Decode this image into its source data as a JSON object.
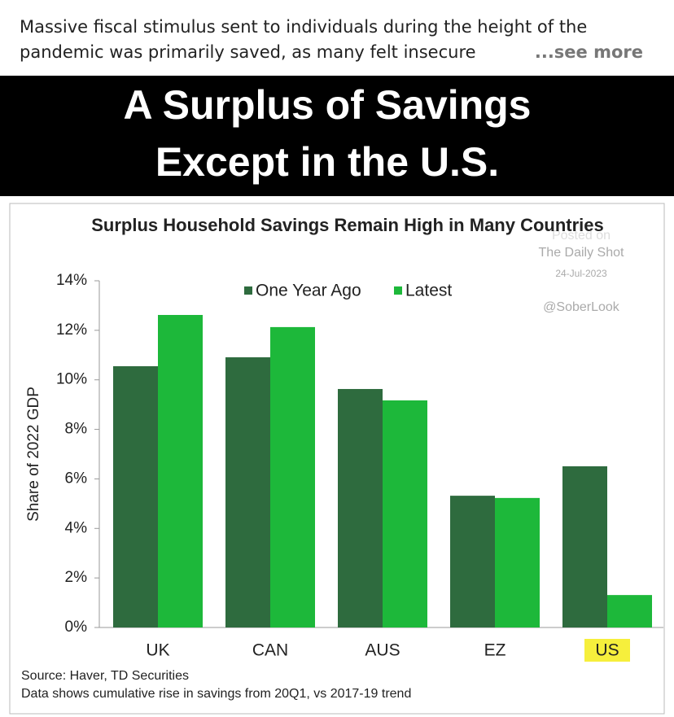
{
  "post": {
    "text": "Massive fiscal stimulus sent to individuals during the height of the pandemic was primarily saved, as many felt insecure",
    "see_more": "...see more"
  },
  "banner": {
    "line1": "A Surplus of Savings",
    "line2": "Except in the U.S."
  },
  "chart_data": {
    "type": "bar",
    "title": "Surplus Household Savings Remain High in Many Countries",
    "y_label": "Share of 2022 GDP",
    "categories": [
      "UK",
      "CAN",
      "AUS",
      "EZ",
      "US"
    ],
    "series": [
      {
        "name": "One Year Ago",
        "color": "#2e6b3e",
        "values": [
          10.55,
          10.91,
          9.63,
          5.32,
          6.51
        ]
      },
      {
        "name": "Latest",
        "color": "#1db83a",
        "values": [
          12.62,
          12.13,
          9.17,
          5.23,
          1.31
        ]
      }
    ],
    "ylim": [
      0,
      14
    ],
    "yticks": [
      {
        "value": 0,
        "label": "0%"
      },
      {
        "value": 2,
        "label": "2%"
      },
      {
        "value": 4,
        "label": "4%"
      },
      {
        "value": 6,
        "label": "6%"
      },
      {
        "value": 8,
        "label": "8%"
      },
      {
        "value": 10,
        "label": "10%"
      },
      {
        "value": 12,
        "label": "12%"
      },
      {
        "value": 14,
        "label": "14%"
      }
    ],
    "highlight": {
      "category": 4,
      "color": "#f6ef3c"
    },
    "watermark": [
      "Posted on",
      "The Daily Shot",
      "24-Jul-2023",
      "@SoberLook"
    ],
    "notes": [
      "Source: Haver, TD Securities",
      "Data shows cumulative rise in savings from 20Q1, vs 2017-19 trend"
    ]
  }
}
